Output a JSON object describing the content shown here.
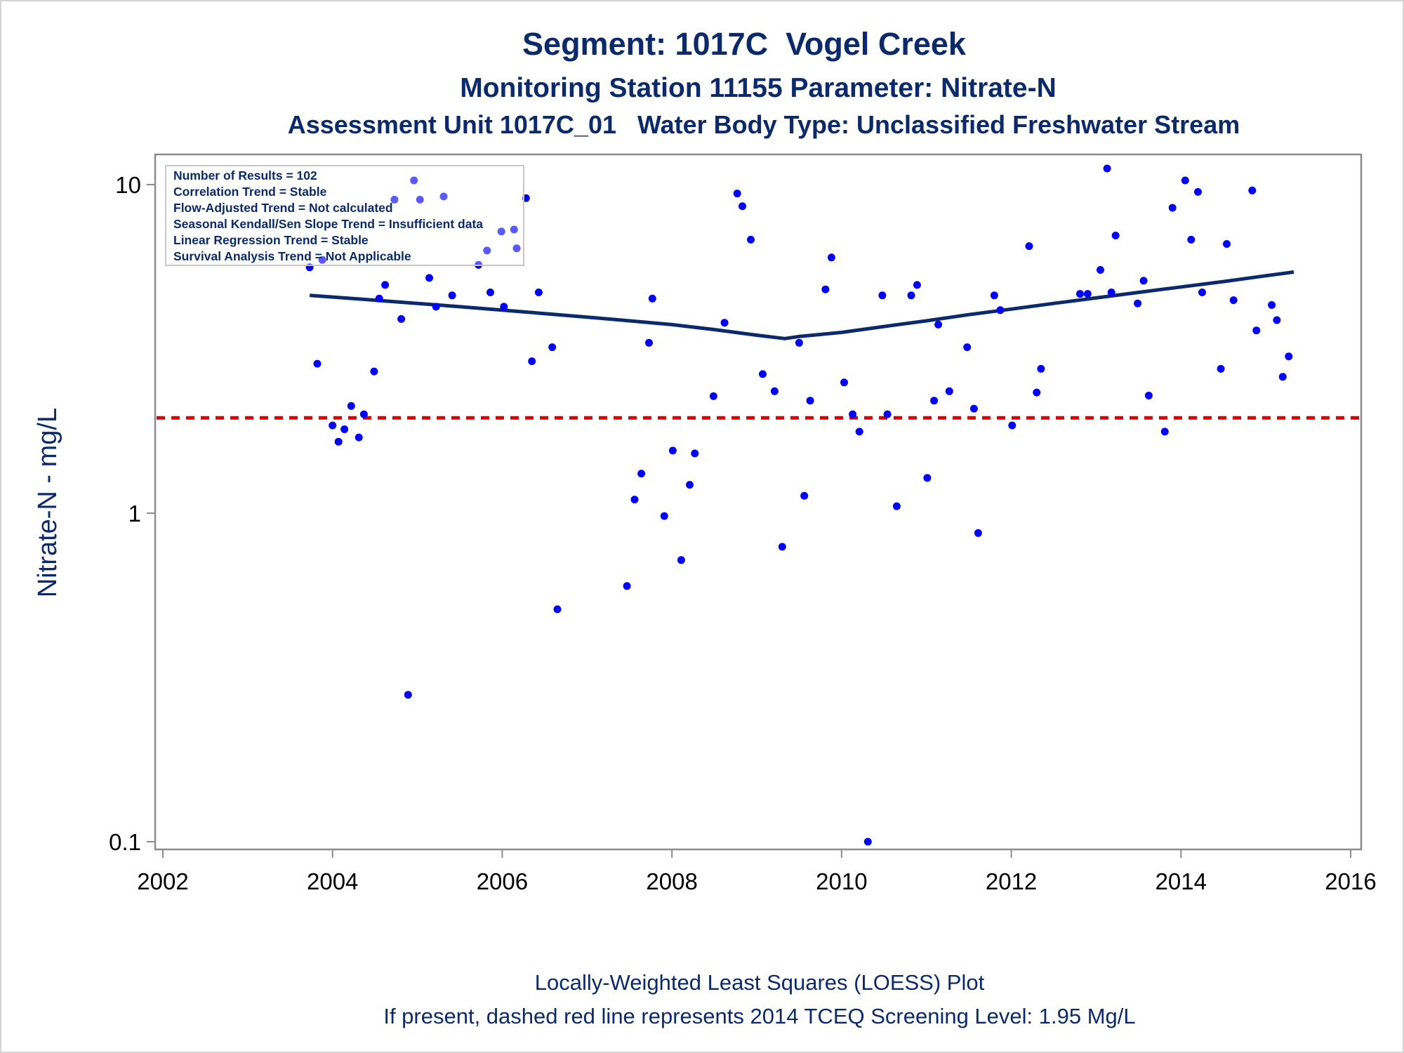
{
  "chart_data": {
    "type": "scatter",
    "title": "Segment: 1017C  Vogel Creek",
    "subtitle": "Monitoring Station 11155 Parameter: Nitrate-N",
    "subtitle2": "Assessment Unit 1017C_01   Water Body Type: Unclassified Freshwater Stream",
    "ylabel": "Nitrate-N - mg/L",
    "xlabel": "",
    "x_ticks": [
      "2002",
      "2004",
      "2006",
      "2008",
      "2010",
      "2012",
      "2014",
      "2016"
    ],
    "y_ticks": [
      "0.1",
      "1",
      "10"
    ],
    "xlim": [
      2002,
      2016
    ],
    "ylim": [
      0.1,
      10
    ],
    "y_scale": "log",
    "grid": false,
    "legend": "none",
    "stats_box": [
      "Number of Results = 102",
      "Correlation Trend = Stable",
      "Flow-Adjusted Trend = Not calculated",
      "Seasonal Kendall/Sen Slope Trend = Insufficient data",
      "Linear Regression Trend = Stable",
      "Survival Analysis Trend = Not Applicable"
    ],
    "footnotes": [
      "Locally-Weighted Least Squares (LOESS) Plot",
      "If present, dashed red line represents 2014 TCEQ Screening Level: 1.95 Mg/L"
    ],
    "screening_level": 1.95,
    "colors": {
      "points": "#0000ff",
      "loess": "#0b2a6b",
      "screening": "#dd0000",
      "text": "#0b2a6b"
    },
    "series": [
      {
        "kind": "points",
        "x": [
          2003.73,
          2003.82,
          2003.88,
          2004.0,
          2004.07,
          2004.14,
          2004.22,
          2004.31,
          2004.37,
          2004.49,
          2004.55,
          2004.62,
          2004.73,
          2004.81,
          2004.89,
          2004.96,
          2005.03,
          2005.14,
          2005.22,
          2005.31,
          2005.41,
          2005.72,
          2005.82,
          2005.86,
          2005.99,
          2006.02,
          2006.14,
          2006.17,
          2006.28,
          2006.35,
          2006.43,
          2006.59,
          2006.65,
          2007.47,
          2007.56,
          2007.64,
          2007.73,
          2007.77,
          2007.91,
          2008.01,
          2008.11,
          2008.21,
          2008.27,
          2008.49,
          2008.62,
          2008.77,
          2008.83,
          2008.93,
          2009.07,
          2009.21,
          2009.3,
          2009.5,
          2009.56,
          2009.63,
          2009.81,
          2009.88,
          2010.03,
          2010.13,
          2010.21,
          2010.31,
          2010.48,
          2010.54,
          2010.65,
          2010.82,
          2010.89,
          2011.01,
          2011.09,
          2011.14,
          2011.27,
          2011.48,
          2011.56,
          2011.61,
          2011.8,
          2011.87,
          2012.01,
          2012.21,
          2012.3,
          2012.35,
          2012.81,
          2012.9,
          2013.05,
          2013.13,
          2013.18,
          2013.23,
          2013.49,
          2013.56,
          2013.62,
          2013.81,
          2013.9,
          2014.05,
          2014.12,
          2014.2,
          2014.25,
          2014.47,
          2014.54,
          2014.62,
          2014.84,
          2014.89,
          2015.07,
          2015.13,
          2015.2,
          2015.27
        ],
        "y": [
          5.6,
          2.85,
          5.9,
          1.85,
          1.65,
          1.8,
          2.12,
          1.7,
          2.0,
          2.7,
          4.5,
          4.95,
          9.0,
          3.9,
          0.28,
          10.3,
          9.0,
          5.2,
          4.25,
          9.2,
          4.6,
          5.7,
          6.3,
          4.7,
          7.2,
          4.25,
          7.3,
          6.4,
          9.1,
          2.9,
          4.7,
          3.2,
          0.51,
          0.6,
          1.1,
          1.32,
          3.3,
          4.5,
          0.98,
          1.55,
          0.72,
          1.22,
          1.52,
          2.27,
          3.8,
          9.4,
          8.6,
          6.8,
          2.65,
          2.35,
          0.79,
          3.3,
          1.13,
          2.2,
          4.8,
          6.0,
          2.5,
          2.0,
          1.77,
          0.1,
          4.6,
          2.0,
          1.05,
          4.6,
          4.95,
          1.28,
          2.2,
          3.75,
          2.35,
          3.2,
          2.08,
          0.87,
          4.6,
          4.15,
          1.85,
          6.5,
          2.33,
          2.75,
          4.65,
          4.65,
          5.5,
          11.2,
          4.7,
          7.0,
          4.35,
          5.1,
          2.28,
          1.77,
          8.5,
          10.3,
          6.8,
          9.5,
          4.7,
          2.75,
          6.6,
          4.45,
          9.6,
          3.6,
          4.3,
          3.87,
          2.6,
          3.0
        ]
      },
      {
        "kind": "loess",
        "x": [
          2003.73,
          2004.0,
          2004.5,
          2005.0,
          2005.5,
          2006.0,
          2006.5,
          2007.0,
          2007.5,
          2008.0,
          2008.5,
          2009.0,
          2009.33,
          2009.5,
          2010.0,
          2010.5,
          2011.0,
          2011.5,
          2012.0,
          2012.5,
          2013.0,
          2013.5,
          2014.0,
          2014.5,
          2015.0,
          2015.33
        ],
        "y": [
          4.6,
          4.55,
          4.45,
          4.35,
          4.25,
          4.15,
          4.05,
          3.95,
          3.85,
          3.75,
          3.62,
          3.48,
          3.4,
          3.45,
          3.55,
          3.7,
          3.85,
          4.02,
          4.18,
          4.35,
          4.52,
          4.7,
          4.88,
          5.07,
          5.28,
          5.42
        ]
      }
    ]
  }
}
